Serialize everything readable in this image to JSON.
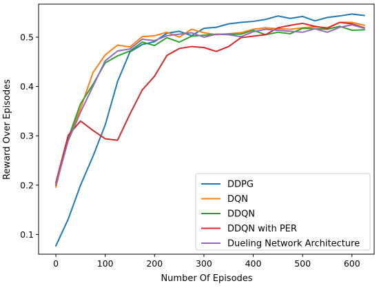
{
  "chart_data": {
    "type": "line",
    "title": "",
    "xlabel": "Number Of Episodes",
    "ylabel": "Reward Over Episodes",
    "xlim": [
      -35,
      645
    ],
    "ylim": [
      0.06,
      0.567
    ],
    "xticks": [
      0,
      100,
      200,
      300,
      400,
      500,
      600
    ],
    "yticks": [
      0.1,
      0.2,
      0.3,
      0.4,
      0.5
    ],
    "xtick_labels": [
      "0",
      "100",
      "200",
      "300",
      "400",
      "500",
      "600"
    ],
    "ytick_labels": [
      "0.1",
      "0.2",
      "0.3",
      "0.4",
      "0.5"
    ],
    "grid": false,
    "legend_position": "lower-right",
    "x": [
      0,
      25,
      50,
      75,
      100,
      125,
      150,
      175,
      200,
      225,
      250,
      275,
      300,
      325,
      350,
      375,
      400,
      425,
      450,
      475,
      500,
      525,
      550,
      575,
      600,
      625
    ],
    "series": [
      {
        "name": "DDPG",
        "color": "#1f77b4",
        "values": [
          0.077,
          0.131,
          0.2,
          0.258,
          0.322,
          0.41,
          0.47,
          0.485,
          0.491,
          0.508,
          0.512,
          0.503,
          0.518,
          0.52,
          0.527,
          0.53,
          0.532,
          0.536,
          0.543,
          0.538,
          0.542,
          0.533,
          0.54,
          0.543,
          0.547,
          0.544
        ]
      },
      {
        "name": "DQN",
        "color": "#ff7f0e",
        "values": [
          0.196,
          0.295,
          0.355,
          0.428,
          0.464,
          0.484,
          0.48,
          0.501,
          0.503,
          0.51,
          0.5,
          0.516,
          0.509,
          0.505,
          0.507,
          0.509,
          0.516,
          0.519,
          0.517,
          0.516,
          0.519,
          0.521,
          0.519,
          0.53,
          0.53,
          0.524
        ]
      },
      {
        "name": "DDQN",
        "color": "#2ca02c",
        "values": [
          0.2,
          0.295,
          0.365,
          0.404,
          0.448,
          0.462,
          0.472,
          0.49,
          0.483,
          0.499,
          0.49,
          0.502,
          0.504,
          0.506,
          0.506,
          0.506,
          0.514,
          0.505,
          0.51,
          0.507,
          0.518,
          0.517,
          0.516,
          0.522,
          0.514,
          0.515
        ]
      },
      {
        "name": "DDQN with PER",
        "color": "#d62728",
        "values": [
          0.205,
          0.301,
          0.33,
          0.311,
          0.294,
          0.291,
          0.344,
          0.393,
          0.421,
          0.463,
          0.477,
          0.481,
          0.479,
          0.471,
          0.481,
          0.499,
          0.502,
          0.505,
          0.519,
          0.524,
          0.528,
          0.522,
          0.518,
          0.53,
          0.527,
          0.519
        ]
      },
      {
        "name": "Dueling Network Architecture",
        "color": "#9467bd",
        "values": [
          0.201,
          0.29,
          0.348,
          0.4,
          0.452,
          0.472,
          0.476,
          0.496,
          0.493,
          0.503,
          0.506,
          0.509,
          0.5,
          0.506,
          0.505,
          0.501,
          0.511,
          0.516,
          0.514,
          0.512,
          0.51,
          0.517,
          0.51,
          0.52,
          0.525,
          0.518
        ]
      }
    ]
  }
}
